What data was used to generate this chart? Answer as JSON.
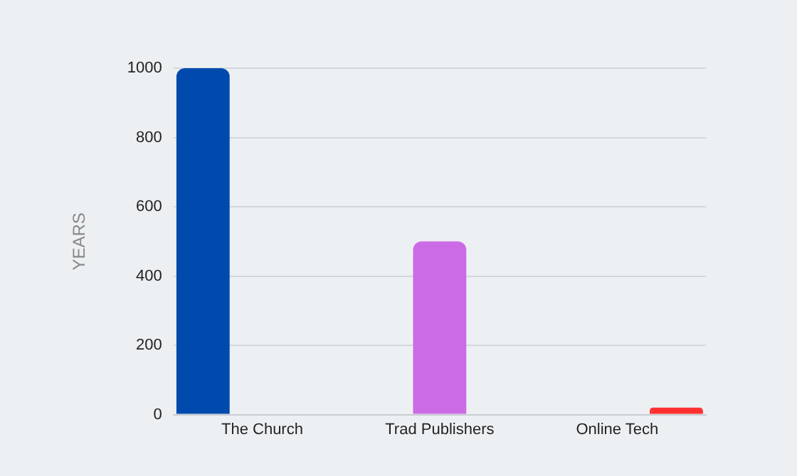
{
  "chart_data": {
    "type": "bar",
    "ylabel": "YEARS",
    "categories": [
      "The Church",
      "Trad Publishers",
      "Online Tech"
    ],
    "series": [
      {
        "color": "#004aad",
        "values": [
          1000,
          0,
          0
        ]
      },
      {
        "color": "#cb6ce6",
        "values": [
          0,
          500,
          0
        ]
      },
      {
        "color": "#ff3131",
        "values": [
          0,
          0,
          20
        ]
      }
    ],
    "ylim": [
      0,
      1000
    ],
    "yticks": [
      0,
      200,
      400,
      600,
      800,
      1000
    ],
    "grid": "y",
    "legend": false
  }
}
